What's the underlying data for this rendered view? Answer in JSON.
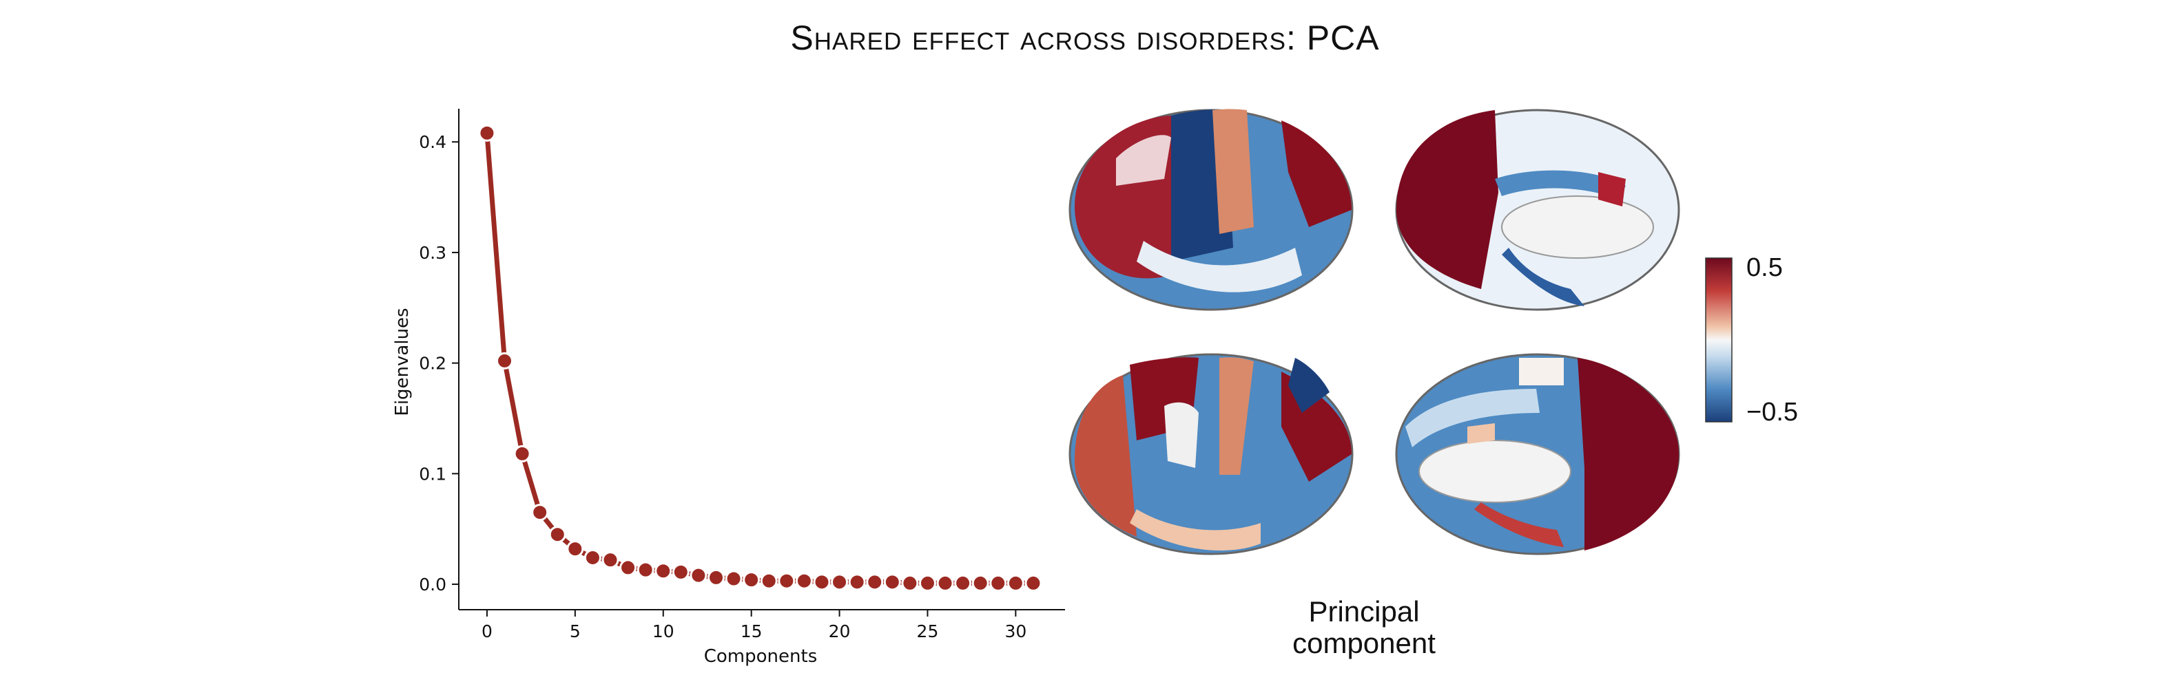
{
  "title": "Shared effect across disorders: PCA",
  "colors": {
    "series": "#9c2a22",
    "marker_edge": "#ffffff"
  },
  "chart_data": {
    "type": "line",
    "xlabel": "Components",
    "ylabel": "Eigenvalues",
    "xlim": [
      -1.6,
      32.8
    ],
    "ylim": [
      -0.023,
      0.43
    ],
    "xticks": [
      0,
      5,
      10,
      15,
      20,
      25,
      30
    ],
    "yticks": [
      0.0,
      0.1,
      0.2,
      0.3,
      0.4
    ],
    "ytick_labels": [
      "0.0",
      "0.1",
      "0.2",
      "0.3",
      "0.4"
    ],
    "grid": false,
    "x": [
      0,
      1,
      2,
      3,
      4,
      5,
      6,
      7,
      8,
      9,
      10,
      11,
      12,
      13,
      14,
      15,
      16,
      17,
      18,
      19,
      20,
      21,
      22,
      23,
      24,
      25,
      26,
      27,
      28,
      29,
      30,
      31
    ],
    "y": [
      0.408,
      0.202,
      0.118,
      0.065,
      0.045,
      0.032,
      0.024,
      0.022,
      0.015,
      0.013,
      0.012,
      0.011,
      0.008,
      0.006,
      0.005,
      0.004,
      0.003,
      0.003,
      0.003,
      0.002,
      0.002,
      0.002,
      0.002,
      0.002,
      0.001,
      0.001,
      0.001,
      0.001,
      0.001,
      0.001,
      0.001,
      0.001
    ]
  },
  "colorbar": {
    "max_label": "0.5",
    "min_label": "−0.5",
    "colors": [
      "#6d0a1f",
      "#c23d3a",
      "#f0c5a9",
      "#f7f7f7",
      "#c5dbed",
      "#4f8ac2",
      "#1b3f7a"
    ]
  },
  "brain_panel": {
    "caption_line1": "Principal",
    "caption_line2": "component"
  }
}
